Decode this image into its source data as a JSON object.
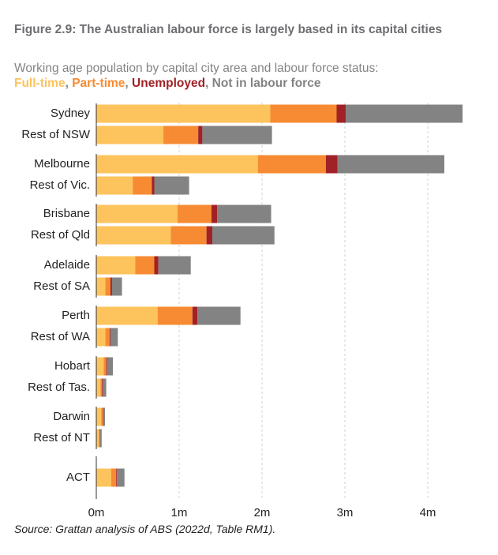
{
  "chart_data": {
    "type": "bar",
    "orientation": "horizontal",
    "stacked": true,
    "title": "Figure 2.9: The Australian labour force is largely based in its capital cities",
    "subtitle": "Working age population by capital city area and labour force status:",
    "legend_separator": ", ",
    "categories": [
      "Sydney",
      "Rest of NSW",
      "Melbourne",
      "Rest of Vic.",
      "Brisbane",
      "Rest of Qld",
      "Adelaide",
      "Rest of SA",
      "Perth",
      "Rest of WA",
      "Hobart",
      "Rest of Tas.",
      "Darwin",
      "Rest of NT",
      "ACT"
    ],
    "series": [
      {
        "name": "Full-time",
        "color": "#fdc35c",
        "values": [
          2.1,
          0.81,
          1.95,
          0.44,
          0.98,
          0.9,
          0.47,
          0.11,
          0.74,
          0.11,
          0.09,
          0.05,
          0.06,
          0.03,
          0.18
        ]
      },
      {
        "name": "Part-time",
        "color": "#f68b33",
        "values": [
          0.8,
          0.42,
          0.82,
          0.23,
          0.41,
          0.43,
          0.23,
          0.06,
          0.42,
          0.05,
          0.03,
          0.02,
          0.02,
          0.01,
          0.06
        ]
      },
      {
        "name": "Unemployed",
        "color": "#a02226",
        "values": [
          0.11,
          0.05,
          0.14,
          0.03,
          0.07,
          0.07,
          0.05,
          0.02,
          0.06,
          0.01,
          0.01,
          0.01,
          0.005,
          0.005,
          0.01
        ]
      },
      {
        "name": "Not in labour force",
        "color": "#838383",
        "values": [
          1.41,
          0.84,
          1.29,
          0.42,
          0.65,
          0.75,
          0.39,
          0.12,
          0.52,
          0.09,
          0.07,
          0.04,
          0.02,
          0.02,
          0.09
        ]
      }
    ],
    "xlim": [
      0,
      4.5
    ],
    "xticks": [
      {
        "value": 0,
        "label": "0m"
      },
      {
        "value": 1,
        "label": "1m"
      },
      {
        "value": 2,
        "label": "2m"
      },
      {
        "value": 3,
        "label": "3m"
      },
      {
        "value": 4,
        "label": "4m"
      }
    ],
    "grid": true,
    "source": "Source: Grattan analysis of ABS (2022d, Table RM1)."
  }
}
